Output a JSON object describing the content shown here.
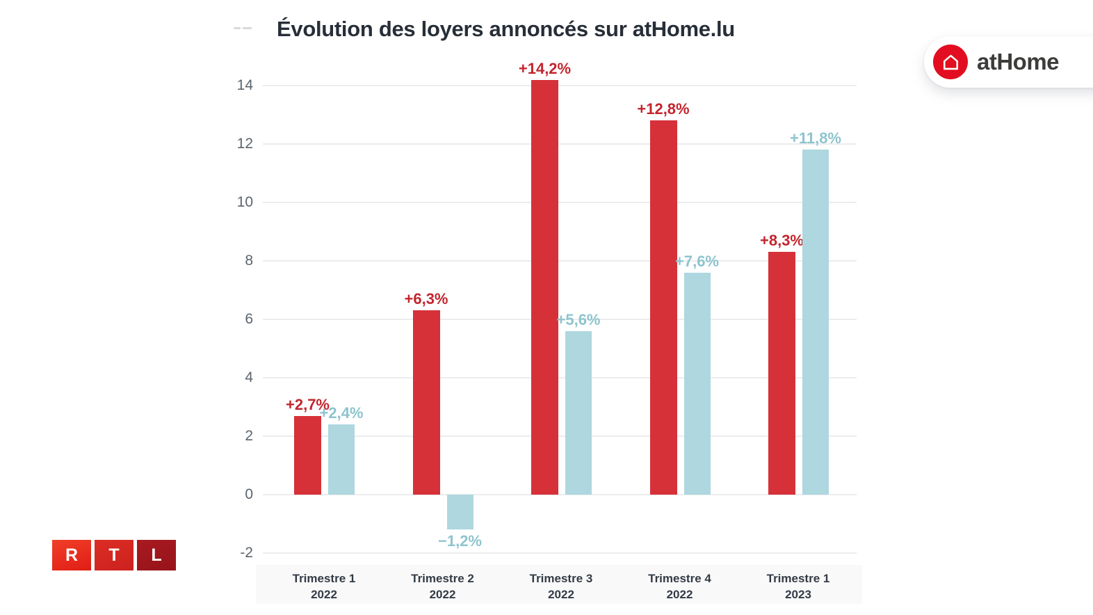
{
  "title": "Évolution des loyers annoncés sur atHome.lu",
  "branding": {
    "athome_label": "atHome",
    "rtl_letters": [
      "R",
      "T",
      "L"
    ]
  },
  "colors": {
    "red_bar": "#d63139",
    "red_label": "#c3252d",
    "blue_bar": "#aed7df",
    "blue_label": "#8ec4ce",
    "grid": "#ececee",
    "axis_text": "#5b646c",
    "title_text": "#272e38",
    "athome_red": "#e20d20",
    "rtl_reds": [
      "#e8261e",
      "#ce2420",
      "#9e181d"
    ]
  },
  "chart_data": {
    "type": "bar",
    "title": "Évolution des loyers annoncés sur atHome.lu",
    "categories": [
      {
        "line1": "Trimestre 1",
        "line2": "2022"
      },
      {
        "line1": "Trimestre 2",
        "line2": "2022"
      },
      {
        "line1": "Trimestre 3",
        "line2": "2022"
      },
      {
        "line1": "Trimestre 4",
        "line2": "2022"
      },
      {
        "line1": "Trimestre 1",
        "line2": "2023"
      }
    ],
    "series": [
      {
        "name": "red",
        "color": "#d63139",
        "values": [
          2.7,
          6.3,
          14.2,
          12.8,
          8.3
        ],
        "labels": [
          "+2,7%",
          "+6,3%",
          "+14,2%",
          "+12,8%",
          "+8,3%"
        ]
      },
      {
        "name": "blue",
        "color": "#aed7df",
        "values": [
          2.4,
          -1.2,
          5.6,
          7.6,
          11.8
        ],
        "labels": [
          "+2,4%",
          "−1,2%",
          "+5,6%",
          "+7,6%",
          "+11,8%"
        ]
      }
    ],
    "y_ticks": [
      -2,
      0,
      2,
      4,
      6,
      8,
      10,
      12,
      14
    ],
    "ylim": [
      -2.8,
      16
    ],
    "xlabel": "",
    "ylabel": "",
    "grid": true,
    "legend": "none"
  }
}
